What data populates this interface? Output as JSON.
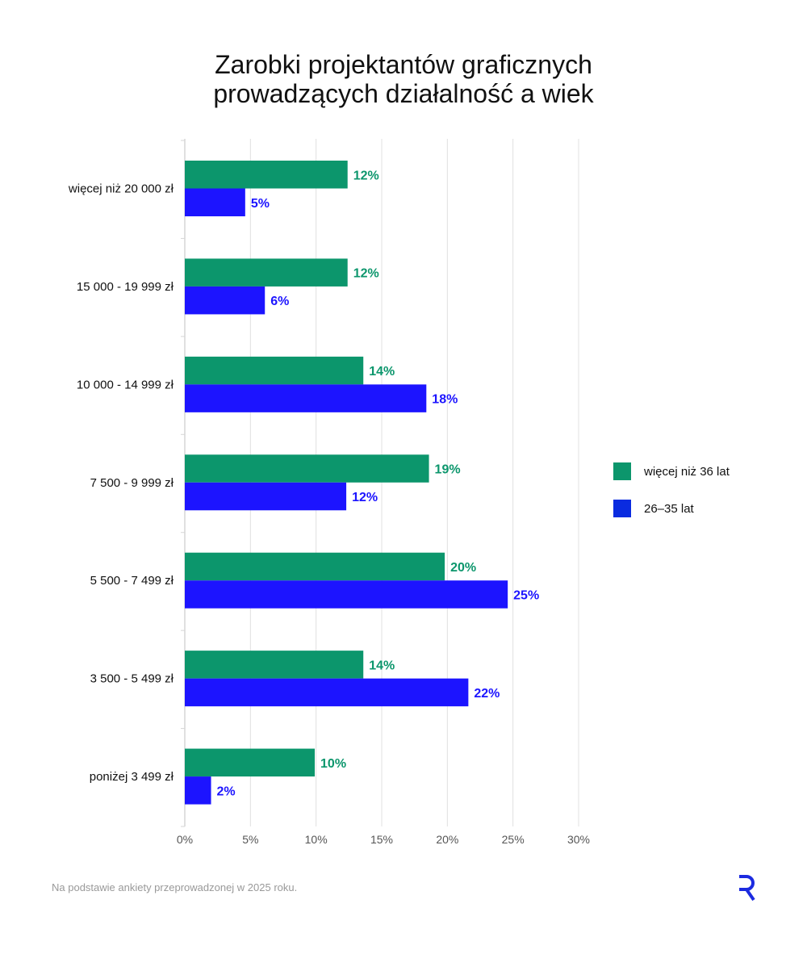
{
  "title_lines": [
    "Zarobki projektantów graficznych",
    "prowadzących działalność a wiek"
  ],
  "source": "Na podstawie ankiety przeprowadzonej w 2025 roku.",
  "logo": "R",
  "chart_data": {
    "type": "bar",
    "orientation": "horizontal",
    "title": "Zarobki projektantów graficznych prowadzących działalność a wiek",
    "categories": [
      "więcej niż 20 000 zł",
      "15 000 - 19 999 zł",
      "10 000 - 14 999 zł",
      "7 500 - 9 999 zł",
      "5 500 - 7 499 zł",
      "3 500 - 5 499 zł",
      "poniżej 3 499 zł"
    ],
    "series": [
      {
        "name": "więcej niż 36 lat",
        "color": "#0c966c",
        "values": [
          12.4,
          12.4,
          13.6,
          18.6,
          19.8,
          13.6,
          9.9
        ],
        "labels": [
          "12%",
          "12%",
          "14%",
          "19%",
          "20%",
          "14%",
          "10%"
        ]
      },
      {
        "name": "26–35 lat",
        "color": "#1c14ff",
        "values": [
          4.6,
          6.1,
          18.4,
          12.3,
          24.6,
          21.6,
          2.0
        ],
        "labels": [
          "5%",
          "6%",
          "18%",
          "12%",
          "25%",
          "22%",
          "2%"
        ]
      }
    ],
    "xlim": [
      0,
      30
    ],
    "xticks": [
      0,
      5,
      10,
      15,
      20,
      25,
      30
    ],
    "xtick_labels": [
      "0%",
      "5%",
      "10%",
      "15%",
      "20%",
      "25%",
      "30%"
    ],
    "grid": "vertical",
    "legend_position": "right",
    "xlabel": "",
    "ylabel": ""
  }
}
